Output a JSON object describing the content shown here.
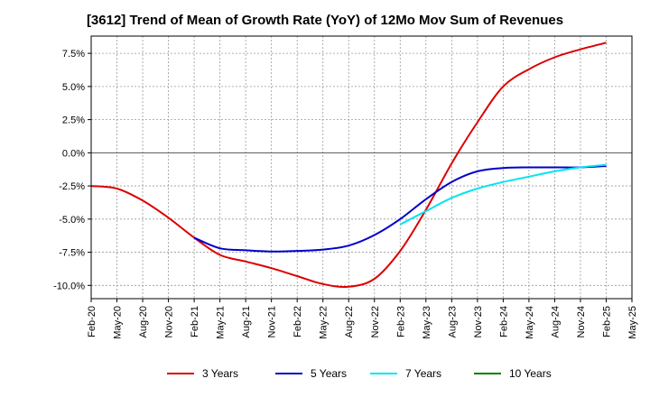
{
  "chart_data": {
    "type": "line",
    "title": "[3612]  Trend of Mean of Growth Rate (YoY) of 12Mo Mov Sum of Revenues",
    "xlabel": "",
    "ylabel": "",
    "x_ticks": [
      "Feb-20",
      "May-20",
      "Aug-20",
      "Nov-20",
      "Feb-21",
      "May-21",
      "Aug-21",
      "Nov-21",
      "Feb-22",
      "May-22",
      "Aug-22",
      "Nov-22",
      "Feb-23",
      "May-23",
      "Aug-23",
      "Nov-23",
      "Feb-24",
      "May-24",
      "Aug-24",
      "Nov-24",
      "Feb-25",
      "May-25"
    ],
    "y_ticks": [
      7.5,
      5.0,
      2.5,
      0.0,
      -2.5,
      -5.0,
      -7.5,
      -10.0
    ],
    "y_tick_labels": [
      "7.5%",
      "5.0%",
      "2.5%",
      "0.0%",
      "-2.5%",
      "-5.0%",
      "-7.5%",
      "-10.0%"
    ],
    "ylim": [
      -11.0,
      8.8
    ],
    "grid": true,
    "legend_position": "bottom",
    "series": [
      {
        "name": "3 Years",
        "color": "#dd0000",
        "x": [
          "Feb-20",
          "May-20",
          "Aug-20",
          "Nov-20",
          "Feb-21",
          "May-21",
          "Aug-21",
          "Nov-21",
          "Feb-22",
          "May-22",
          "Aug-22",
          "Nov-22",
          "Feb-23",
          "May-23",
          "Aug-23",
          "Nov-23",
          "Feb-24",
          "May-24",
          "Aug-24",
          "Nov-24",
          "Feb-25"
        ],
        "values": [
          -2.5,
          -2.7,
          -3.6,
          -4.9,
          -6.4,
          -7.7,
          -8.2,
          -8.7,
          -9.3,
          -9.9,
          -10.1,
          -9.5,
          -7.4,
          -4.3,
          -0.8,
          2.3,
          5.0,
          6.3,
          7.2,
          7.8,
          8.3
        ]
      },
      {
        "name": "5 Years",
        "color": "#0000cc",
        "x": [
          "Feb-21",
          "May-21",
          "Aug-21",
          "Nov-21",
          "Feb-22",
          "May-22",
          "Aug-22",
          "Nov-22",
          "Feb-23",
          "May-23",
          "Aug-23",
          "Nov-23",
          "Feb-24",
          "May-24",
          "Aug-24",
          "Nov-24",
          "Feb-25"
        ],
        "values": [
          -6.4,
          -7.2,
          -7.35,
          -7.45,
          -7.4,
          -7.3,
          -7.0,
          -6.2,
          -5.0,
          -3.5,
          -2.2,
          -1.4,
          -1.15,
          -1.1,
          -1.1,
          -1.1,
          -1.0
        ]
      },
      {
        "name": "7 Years",
        "color": "#00e5ee",
        "x": [
          "Feb-23",
          "May-23",
          "Aug-23",
          "Nov-23",
          "Feb-24",
          "May-24",
          "Aug-24",
          "Nov-24",
          "Feb-25"
        ],
        "values": [
          -5.4,
          -4.4,
          -3.4,
          -2.7,
          -2.2,
          -1.8,
          -1.4,
          -1.1,
          -0.9
        ]
      },
      {
        "name": "10 Years",
        "color": "#008000",
        "x": [],
        "values": []
      }
    ]
  }
}
